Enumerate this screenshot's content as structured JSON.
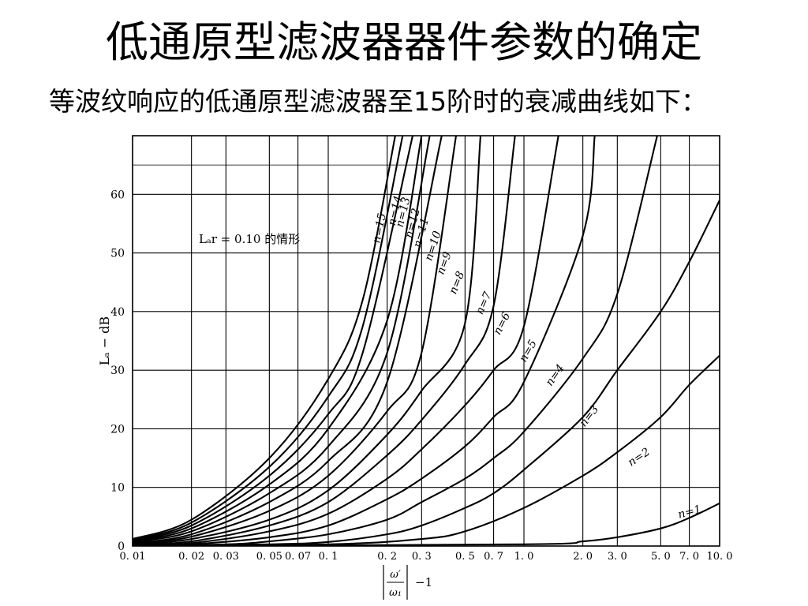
{
  "slide": {
    "title": "低通原型滤波器器件参数的确定",
    "body": "等波纹响应的低通原型滤波器至15阶时的衰减曲线如下："
  },
  "chart_data": {
    "type": "line",
    "title": "",
    "annotation": "Lₐr = 0.10 的情形",
    "ylabel": "Lₐ − dB",
    "xlabel_lines": [
      "ω′ / ω₁",
      "−1"
    ],
    "xscale": "log",
    "xlim": [
      0.01,
      10.0
    ],
    "ylim": [
      0,
      70
    ],
    "x_ticks": [
      0.01,
      0.02,
      0.03,
      0.05,
      0.07,
      0.1,
      0.2,
      0.3,
      0.5,
      0.7,
      1.0,
      2.0,
      3.0,
      5.0,
      7.0,
      10.0
    ],
    "x_tick_labels": [
      "0. 01",
      "0. 02",
      "0. 03",
      "0. 05",
      "0. 07",
      "0. 1",
      "0. 2",
      "0. 3",
      "0. 5",
      "0. 7",
      "1. 0",
      "2. 0",
      "3. 0",
      "5. 0",
      "7. 0",
      "10. 0"
    ],
    "y_ticks": [
      0,
      10,
      20,
      30,
      40,
      50,
      60
    ],
    "y_tick_labels": [
      "0",
      "10",
      "20",
      "30",
      "40",
      "50",
      "60"
    ],
    "grid": true,
    "series": [
      {
        "name": "n=1",
        "label": "n=1",
        "x": [
          0.01,
          1.0,
          2.0,
          3.0,
          5.0,
          7.0,
          10.0
        ],
        "y": [
          0,
          0.3,
          0.8,
          1.5,
          3.0,
          4.8,
          7.3
        ]
      },
      {
        "name": "n=2",
        "label": "n=2",
        "x": [
          0.01,
          0.1,
          0.3,
          0.5,
          1.0,
          2.0,
          3.0,
          5.0,
          7.0,
          10.0
        ],
        "y": [
          0,
          0.3,
          1.2,
          2.5,
          6.5,
          12.0,
          16.0,
          22.0,
          27.5,
          32.5
        ]
      },
      {
        "name": "n=3",
        "label": "n=3",
        "x": [
          0.01,
          0.05,
          0.1,
          0.2,
          0.3,
          0.5,
          0.7,
          1.0,
          2.0,
          3.0,
          5.0,
          7.0,
          10.0
        ],
        "y": [
          0,
          0.3,
          0.7,
          2.0,
          3.5,
          6.5,
          9.0,
          13.0,
          22.0,
          30.0,
          40.0,
          48.5,
          59.0
        ]
      },
      {
        "name": "n=4",
        "label": "n=4",
        "x": [
          0.01,
          0.03,
          0.05,
          0.1,
          0.2,
          0.3,
          0.5,
          0.7,
          1.0,
          2.0,
          3.0,
          4.8
        ],
        "y": [
          0,
          0.3,
          0.8,
          2.0,
          4.5,
          7.5,
          11.5,
          15.0,
          19.5,
          32.0,
          43.0,
          70.0
        ]
      },
      {
        "name": "n=5",
        "label": "n=5",
        "x": [
          0.01,
          0.02,
          0.05,
          0.1,
          0.2,
          0.3,
          0.5,
          0.7,
          1.0,
          2.0,
          2.3
        ],
        "y": [
          0,
          0.3,
          1.5,
          3.5,
          8.0,
          11.5,
          17.0,
          22.0,
          28.0,
          53.0,
          70.0
        ]
      },
      {
        "name": "n=6",
        "label": "n=6",
        "x": [
          0.01,
          0.02,
          0.05,
          0.1,
          0.2,
          0.3,
          0.5,
          0.7,
          1.0,
          1.5
        ],
        "y": [
          0,
          0.5,
          2.5,
          5.5,
          11.5,
          16.5,
          24.0,
          30.0,
          37.5,
          70.0
        ]
      },
      {
        "name": "n=7",
        "label": "n=7",
        "x": [
          0.01,
          0.02,
          0.05,
          0.1,
          0.2,
          0.3,
          0.5,
          0.7,
          0.9
        ],
        "y": [
          0.2,
          0.8,
          3.5,
          7.5,
          15.5,
          21.5,
          31.0,
          41.0,
          70.0
        ]
      },
      {
        "name": "n=8",
        "label": "n=8",
        "x": [
          0.01,
          0.02,
          0.05,
          0.1,
          0.2,
          0.3,
          0.5,
          0.6
        ],
        "y": [
          0.3,
          1.2,
          4.5,
          9.5,
          19.0,
          26.5,
          38.0,
          70.0
        ]
      },
      {
        "name": "n=9",
        "label": "n=9",
        "x": [
          0.01,
          0.02,
          0.05,
          0.1,
          0.2,
          0.3,
          0.45
        ],
        "y": [
          0.4,
          1.6,
          6.0,
          12.0,
          23.0,
          33.0,
          70.0
        ]
      },
      {
        "name": "n=10",
        "label": "n=10",
        "x": [
          0.01,
          0.02,
          0.05,
          0.1,
          0.2,
          0.38
        ],
        "y": [
          0.5,
          2.0,
          7.5,
          14.5,
          28.0,
          70.0
        ]
      },
      {
        "name": "n=11",
        "label": "n=11",
        "x": [
          0.01,
          0.02,
          0.05,
          0.1,
          0.2,
          0.33
        ],
        "y": [
          0.7,
          2.5,
          9.0,
          17.0,
          33.0,
          70.0
        ]
      },
      {
        "name": "n=12",
        "label": "n=12",
        "x": [
          0.01,
          0.02,
          0.05,
          0.1,
          0.2,
          0.3
        ],
        "y": [
          0.8,
          3.0,
          10.5,
          20.0,
          38.5,
          70.0
        ]
      },
      {
        "name": "n=13",
        "label": "n=13",
        "x": [
          0.01,
          0.02,
          0.05,
          0.1,
          0.15,
          0.27
        ],
        "y": [
          0.9,
          3.5,
          12.0,
          22.5,
          33.0,
          70.0
        ]
      },
      {
        "name": "n=14",
        "label": "n=14",
        "x": [
          0.01,
          0.02,
          0.05,
          0.1,
          0.15,
          0.24
        ],
        "y": [
          1.0,
          4.0,
          13.5,
          25.5,
          37.5,
          70.0
        ]
      },
      {
        "name": "n=15",
        "label": "n=15",
        "x": [
          0.01,
          0.02,
          0.05,
          0.1,
          0.15,
          0.22
        ],
        "y": [
          1.2,
          4.5,
          15.0,
          28.5,
          42.0,
          70.0
        ]
      }
    ]
  }
}
